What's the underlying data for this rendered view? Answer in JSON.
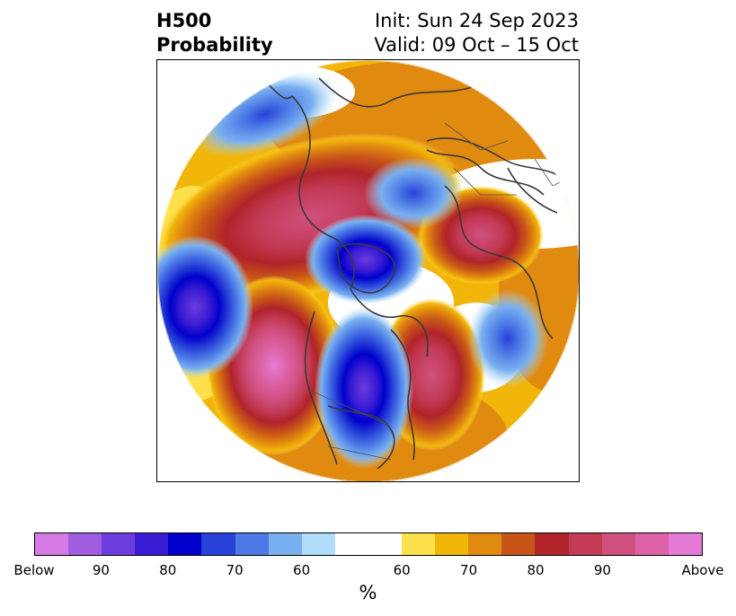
{
  "title": {
    "left_line1": "H500",
    "left_line2": "Probability",
    "right_line1": "Init: Sun 24 Sep 2023",
    "right_line2": "Valid: 09 Oct – 15 Oct"
  },
  "colorbar": {
    "colors": [
      "#d77ae6",
      "#a15ddf",
      "#6c3cdc",
      "#3a1cd4",
      "#0000cc",
      "#2841d8",
      "#4b79e6",
      "#79b0f0",
      "#b0dcfb",
      "#ffffff",
      "#ffffff",
      "#fde14c",
      "#f2b50a",
      "#e08a10",
      "#c85518",
      "#b0242a",
      "#c23a55",
      "#d0507f",
      "#dd62a6",
      "#e57ad6"
    ],
    "tick_labels": [
      "Below",
      "90",
      "80",
      "70",
      "60",
      "60",
      "70",
      "80",
      "90",
      "Above"
    ],
    "unit": "%"
  }
}
